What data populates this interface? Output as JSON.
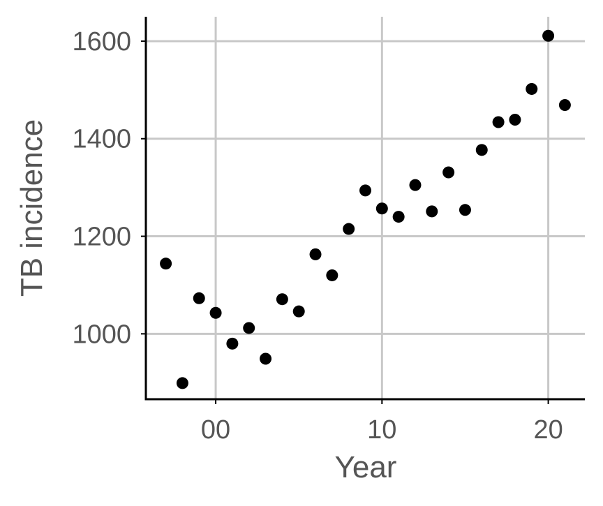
{
  "chart_data": {
    "type": "scatter",
    "title": "",
    "xlabel": "Year",
    "ylabel": "TB incidence",
    "xlim": [
      -4.2,
      22.2
    ],
    "ylim": [
      866,
      1650
    ],
    "grid": true,
    "x_ticks": [
      {
        "value": 0,
        "label": "00"
      },
      {
        "value": 10,
        "label": "10"
      },
      {
        "value": 20,
        "label": "20"
      }
    ],
    "y_ticks": [
      {
        "value": 1000,
        "label": "1000"
      },
      {
        "value": 1200,
        "label": "1200"
      },
      {
        "value": 1400,
        "label": "1400"
      },
      {
        "value": 1600,
        "label": "1600"
      }
    ],
    "series": [
      {
        "x": [
          -3,
          -2,
          -1,
          0,
          1,
          2,
          3,
          4,
          5,
          6,
          7,
          8,
          9,
          10,
          11,
          12,
          13,
          14,
          15,
          16,
          17,
          18,
          19,
          20,
          21
        ],
        "y": [
          1144,
          899,
          1073,
          1043,
          980,
          1012,
          949,
          1071,
          1046,
          1163,
          1120,
          1215,
          1294,
          1257,
          1240,
          1305,
          1251,
          1331,
          1254,
          1377,
          1434,
          1439,
          1502,
          1611,
          1469
        ]
      }
    ],
    "colors": {
      "points": "#000000",
      "grid": "#c8c8c8",
      "axis": "#000000",
      "text": "#555555"
    }
  }
}
